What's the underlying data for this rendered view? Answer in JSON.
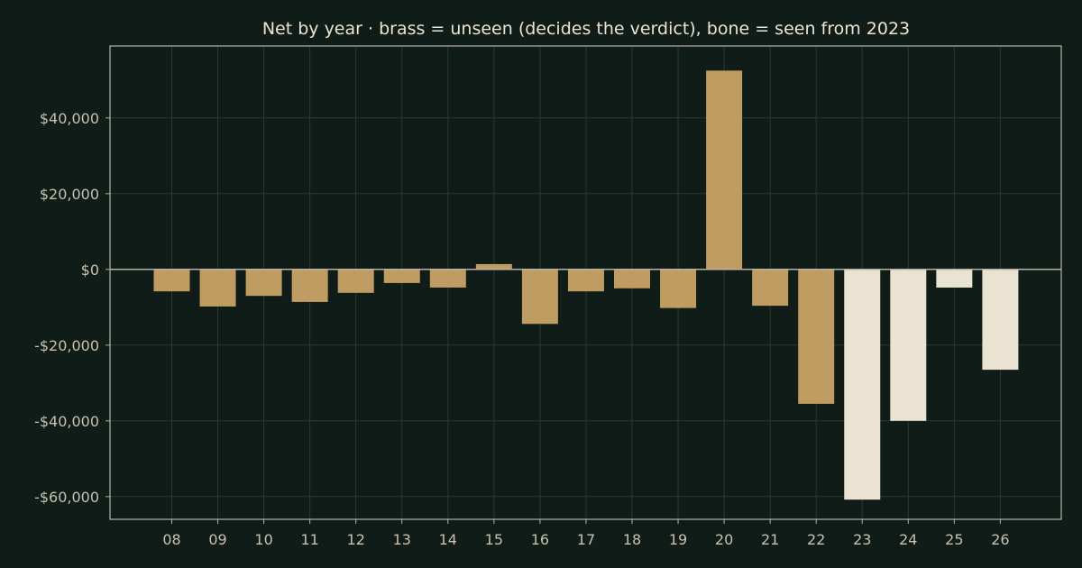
{
  "chart_data": {
    "type": "bar",
    "title": "Net by year  ·  brass = unseen (decides the verdict), bone = seen from 2023",
    "xlabel": "",
    "ylabel": "",
    "categories": [
      "08",
      "09",
      "10",
      "11",
      "12",
      "13",
      "14",
      "15",
      "16",
      "17",
      "18",
      "19",
      "20",
      "21",
      "22",
      "23",
      "24",
      "25",
      "26"
    ],
    "values": [
      -5800,
      -9800,
      -7000,
      -8600,
      -6200,
      -3600,
      -4800,
      1400,
      -14400,
      -5800,
      -5000,
      -10200,
      52500,
      -9600,
      -35500,
      -60800,
      -40000,
      -4800,
      -26500
    ],
    "groups": [
      "unseen",
      "unseen",
      "unseen",
      "unseen",
      "unseen",
      "unseen",
      "unseen",
      "unseen",
      "unseen",
      "unseen",
      "unseen",
      "unseen",
      "unseen",
      "unseen",
      "unseen",
      "seen",
      "seen",
      "seen",
      "seen"
    ],
    "colors": {
      "unseen": "#bf9c62",
      "seen": "#ebe3d1"
    },
    "ylim": [
      -66000,
      59000
    ],
    "yticks": [
      40000,
      20000,
      0,
      -20000,
      -40000,
      -60000
    ],
    "ytick_labels": [
      "$40,000",
      "$20,000",
      "$0",
      "-$20,000",
      "-$40,000",
      "-$60,000"
    ],
    "grid": true,
    "legend": "none"
  }
}
